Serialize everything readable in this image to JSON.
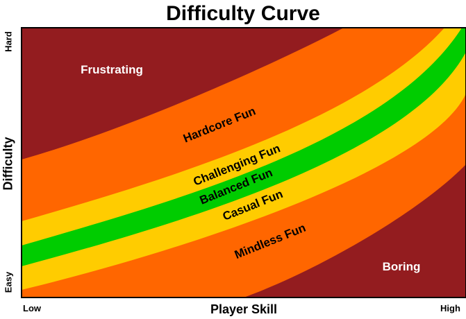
{
  "title": "Difficulty Curve",
  "axes": {
    "x_label": "Player Skill",
    "y_label": "Difficulty",
    "x_low": "Low",
    "x_high": "High",
    "y_low": "Easy",
    "y_high": "Hard"
  },
  "zones": {
    "frustrating": "Frustrating",
    "hardcore": "Hardcore Fun",
    "challenging": "Challenging Fun",
    "balanced": "Balanced Fun",
    "casual": "Casual Fun",
    "mindless": "Mindless Fun",
    "boring": "Boring"
  },
  "colors": {
    "dark_red": "#931c1f",
    "orange": "#ff6600",
    "yellow": "#ffcc00",
    "green": "#00cc00",
    "outline": "#000000",
    "background": "#ffffff"
  }
}
